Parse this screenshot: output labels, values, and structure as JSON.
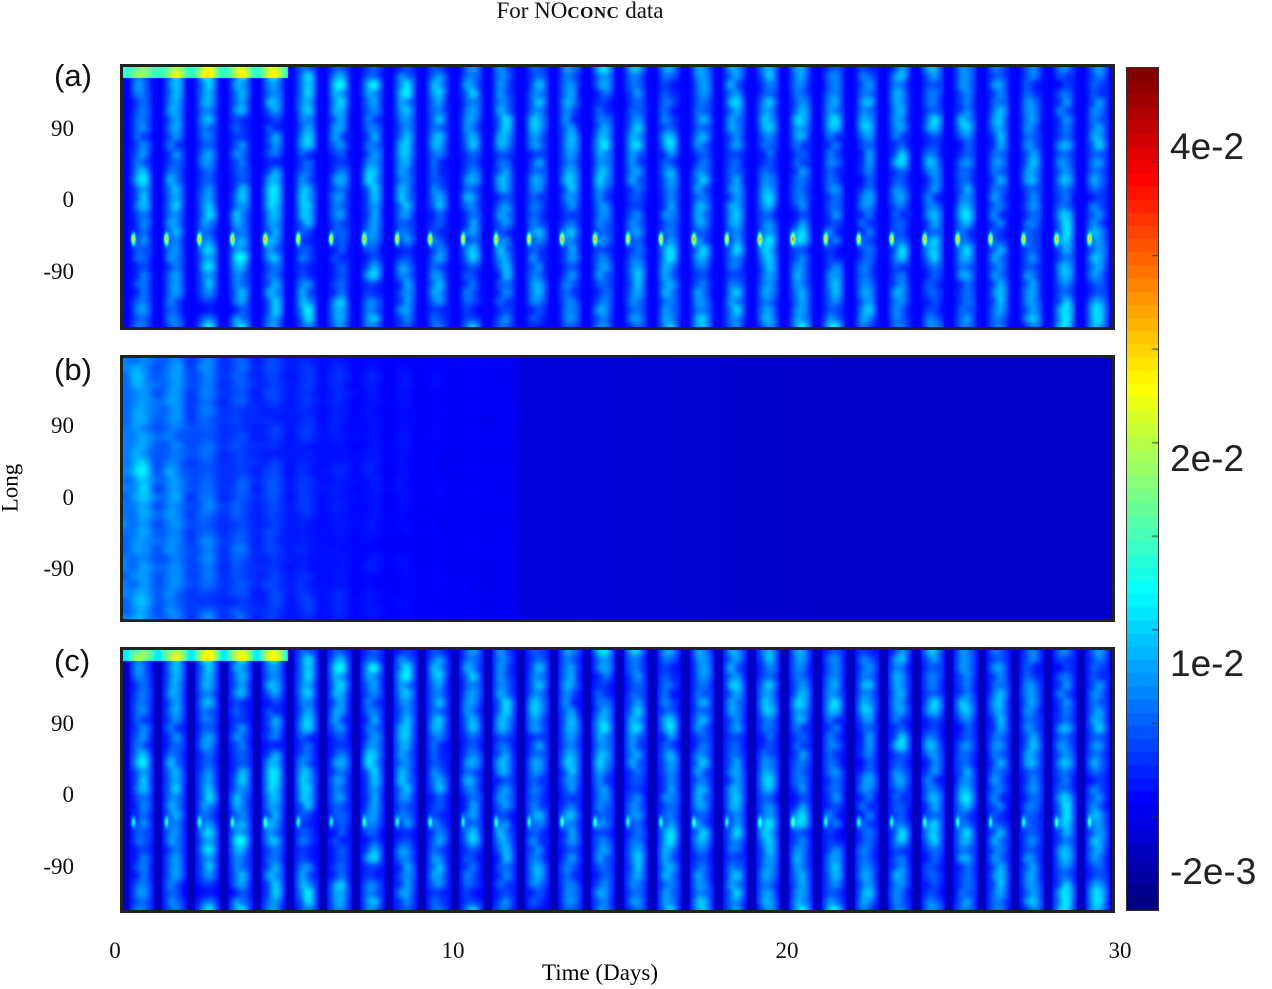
{
  "chart_data": {
    "type": "heatmap",
    "title": "For NO",
    "title_subscript": "CONC",
    "title_suffix": "data",
    "xlabel": "Time (Days)",
    "ylabel": "Long",
    "xlim": [
      0,
      30
    ],
    "xticks": [
      "0",
      "10",
      "20",
      "30"
    ],
    "yticks": [
      "90",
      "0",
      "-90"
    ],
    "colormap": "jet",
    "colorbar": {
      "range": [
        -0.002,
        0.046
      ],
      "ticks": [
        "4e-2",
        "2e-2",
        "1e-2",
        "-2e-3"
      ]
    },
    "panels": [
      {
        "label": "(a)",
        "pattern": "daily periodic bands, blue-cyan with yellow/red peaks"
      },
      {
        "label": "(b)",
        "pattern": "early variability decaying to uniform low values after ~10 days"
      },
      {
        "label": "(c)",
        "pattern": "daily periodic bands, smoother than (a)"
      }
    ]
  }
}
